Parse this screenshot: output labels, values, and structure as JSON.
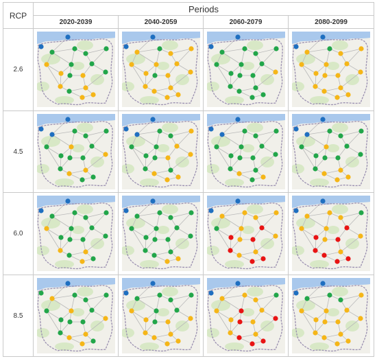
{
  "header": {
    "rcp_label": "RCP",
    "periods_label": "Periods"
  },
  "periods": [
    "2020-2039",
    "2040-2059",
    "2060-2079",
    "2080-2099"
  ],
  "rcps": [
    "2.6",
    "4.5",
    "6.0",
    "8.5"
  ],
  "colors": {
    "blue": "#1f6fc0",
    "green": "#22a64a",
    "yellow": "#f5b618",
    "red": "#e81414"
  },
  "marker_colors": [
    [
      "bbggggyggygygyygyy",
      "bbygyyyyyygyyyyyyy",
      "bbggggggggggyggggg",
      "bbygyyyyyyyyyyyyyy"
    ],
    [
      "bbbggggyggggygyygg",
      "bbbggyggyggyyggyyy",
      "bbbggggggggggggyyg",
      "bbbggggyggggggyyyy"
    ],
    [
      "bbggggyggggggyyggy",
      "bbggggggggggggggyy",
      "bbyyyygyrryryryyrr",
      "bbyyygyyrryryryrrr"
    ],
    [
      "bgyggggyggggygyygy",
      "bbggggyggygyyyyyyy",
      "bbyyygyryyryryyrrr",
      "bbgggyyyyyyyyyyyyy"
    ]
  ]
}
